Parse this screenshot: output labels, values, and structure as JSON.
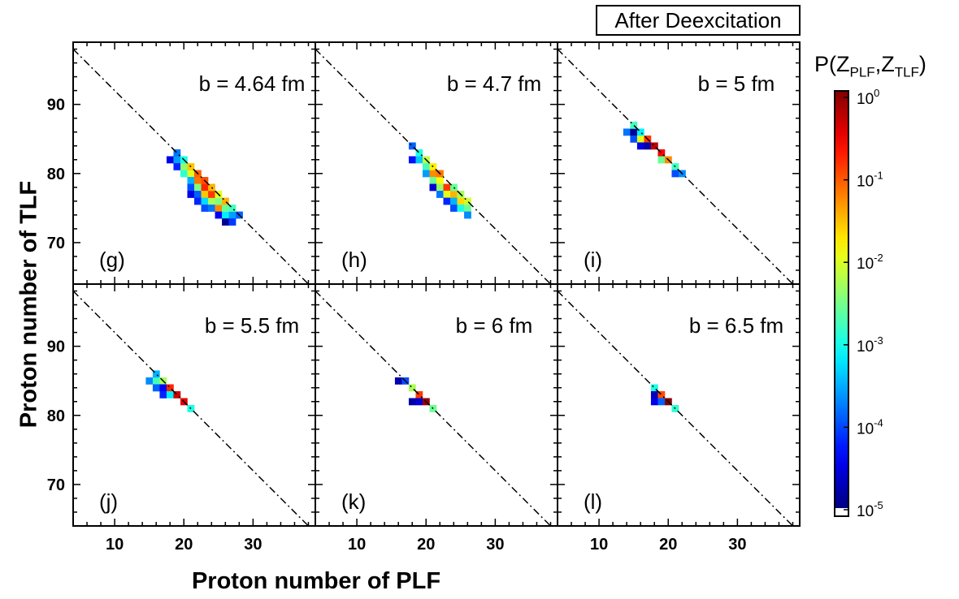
{
  "header": {
    "label": "After Deexcitation"
  },
  "axes": {
    "xlabel": "Proton number of PLF",
    "ylabel": "Proton number of TLF",
    "xlim": [
      4,
      39
    ],
    "ylim": [
      64,
      99
    ],
    "xticks": [
      "10",
      "20",
      "30"
    ],
    "yticks": [
      "70",
      "80",
      "90"
    ]
  },
  "colorbar": {
    "title_main": "P(Z",
    "title_sub1": "PLF",
    "title_sep": ",Z",
    "title_sub2": "TLF",
    "title_end": ")",
    "scale": "log",
    "range": [
      1e-05,
      1
    ],
    "ticks": [
      {
        "base": "10",
        "exp": "0"
      },
      {
        "base": "10",
        "exp": "-1"
      },
      {
        "base": "10",
        "exp": "-2"
      },
      {
        "base": "10",
        "exp": "-3"
      },
      {
        "base": "10",
        "exp": "-4"
      },
      {
        "base": "10",
        "exp": "-5"
      }
    ]
  },
  "chart_data": {
    "type": "heatmap",
    "reference_line": "Z_PLF + Z_TLF = 102",
    "panels": [
      {
        "label": "(g)",
        "title": "b = 4.64 fm",
        "cells": [
          [
            18,
            82,
            -4.5
          ],
          [
            19,
            82,
            -3.6
          ],
          [
            19,
            83,
            -3.8
          ],
          [
            19,
            81,
            -4.2
          ],
          [
            20,
            81,
            -2.4
          ],
          [
            20,
            82,
            -3.0
          ],
          [
            20,
            80,
            -2.9
          ],
          [
            21,
            80,
            -2.0
          ],
          [
            21,
            81,
            -1.6
          ],
          [
            21,
            79,
            -3.5
          ],
          [
            21,
            78,
            -4.0
          ],
          [
            21,
            77,
            -4.5
          ],
          [
            22,
            79,
            -1.2
          ],
          [
            22,
            80,
            -1.1
          ],
          [
            22,
            78,
            -2.5
          ],
          [
            22,
            77,
            -3.9
          ],
          [
            22,
            76,
            -4.2
          ],
          [
            23,
            78,
            -0.8
          ],
          [
            23,
            79,
            -1.0
          ],
          [
            23,
            77,
            -1.6
          ],
          [
            23,
            76,
            -3.3
          ],
          [
            23,
            75,
            -4.0
          ],
          [
            24,
            76,
            -2.3
          ],
          [
            24,
            77,
            -0.9
          ],
          [
            24,
            78,
            -1.5
          ],
          [
            24,
            75,
            -3.8
          ],
          [
            25,
            75,
            -1.3
          ],
          [
            25,
            76,
            -2.5
          ],
          [
            25,
            77,
            -2.0
          ],
          [
            25,
            74,
            -4.4
          ],
          [
            26,
            74,
            -3.2
          ],
          [
            26,
            75,
            -2.6
          ],
          [
            26,
            76,
            -1.5
          ],
          [
            26,
            73,
            -4.9
          ],
          [
            27,
            74,
            -3.6
          ],
          [
            27,
            75,
            -2.8
          ],
          [
            27,
            73,
            -4.1
          ],
          [
            28,
            74,
            -3.9
          ]
        ]
      },
      {
        "label": "(h)",
        "title": "b = 4.7 fm",
        "cells": [
          [
            18,
            84,
            -3.9
          ],
          [
            18,
            82,
            -4.3
          ],
          [
            19,
            82,
            -3.4
          ],
          [
            19,
            83,
            -3.0
          ],
          [
            20,
            81,
            -2.8
          ],
          [
            20,
            82,
            -2.2
          ],
          [
            20,
            80,
            -3.6
          ],
          [
            21,
            80,
            -1.3
          ],
          [
            21,
            81,
            -1.8
          ],
          [
            21,
            79,
            -2.6
          ],
          [
            21,
            78,
            -4.6
          ],
          [
            22,
            79,
            -1.9
          ],
          [
            22,
            80,
            -1.2
          ],
          [
            22,
            78,
            -2.4
          ],
          [
            22,
            77,
            -3.8
          ],
          [
            23,
            78,
            -0.9
          ],
          [
            23,
            77,
            -2.0
          ],
          [
            23,
            76,
            -4.2
          ],
          [
            24,
            77,
            -1.5
          ],
          [
            24,
            78,
            -2.6
          ],
          [
            24,
            76,
            -3.5
          ],
          [
            24,
            75,
            -4.0
          ],
          [
            25,
            76,
            -1.7
          ],
          [
            25,
            75,
            -3.0
          ],
          [
            25,
            77,
            -2.3
          ],
          [
            26,
            75,
            -2.6
          ],
          [
            26,
            74,
            -3.7
          ],
          [
            26,
            76,
            -2.1
          ]
        ]
      },
      {
        "label": "(i)",
        "title": "b = 5 fm",
        "cells": [
          [
            14,
            86,
            -3.8
          ],
          [
            15,
            86,
            -4.9
          ],
          [
            15,
            87,
            -2.8
          ],
          [
            15,
            85,
            -4.0
          ],
          [
            16,
            85,
            -2.0
          ],
          [
            16,
            84,
            -4.5
          ],
          [
            16,
            86,
            -3.2
          ],
          [
            17,
            85,
            -0.9
          ],
          [
            17,
            84,
            -4.8
          ],
          [
            18,
            84,
            -0.3
          ],
          [
            19,
            83,
            -0.6
          ],
          [
            19,
            82,
            -2.6
          ],
          [
            20,
            82,
            -1.3
          ],
          [
            21,
            81,
            -2.8
          ],
          [
            21,
            80,
            -4.0
          ],
          [
            22,
            80,
            -3.7
          ]
        ]
      },
      {
        "label": "(j)",
        "title": "b = 5.5 fm",
        "cells": [
          [
            15,
            85,
            -3.7
          ],
          [
            16,
            85,
            -2.8
          ],
          [
            16,
            86,
            -3.5
          ],
          [
            16,
            84,
            -3.9
          ],
          [
            17,
            85,
            -2.3
          ],
          [
            17,
            84,
            -4.4
          ],
          [
            17,
            83,
            -4.2
          ],
          [
            18,
            84,
            -0.8
          ],
          [
            18,
            83,
            -3.2
          ],
          [
            19,
            83,
            -0.4
          ],
          [
            20,
            82,
            -0.5
          ],
          [
            21,
            81,
            -3.0
          ]
        ]
      },
      {
        "label": "(k)",
        "title": "b = 6 fm",
        "cells": [
          [
            16,
            85,
            -4.8
          ],
          [
            17,
            85,
            -4.0
          ],
          [
            18,
            84,
            -2.3
          ],
          [
            19,
            83,
            -0.9
          ],
          [
            18,
            82,
            -4.8
          ],
          [
            19,
            82,
            -4.6
          ],
          [
            20,
            82,
            -0.1
          ],
          [
            21,
            81,
            -2.6
          ]
        ]
      },
      {
        "label": "(l)",
        "title": "b = 6.5 fm",
        "cells": [
          [
            18,
            84,
            -3.0
          ],
          [
            18,
            82,
            -4.5
          ],
          [
            18,
            83,
            -4.7
          ],
          [
            19,
            83,
            -1.0
          ],
          [
            19,
            82,
            -3.9
          ],
          [
            20,
            82,
            0.0
          ],
          [
            21,
            81,
            -2.9
          ]
        ]
      }
    ]
  }
}
